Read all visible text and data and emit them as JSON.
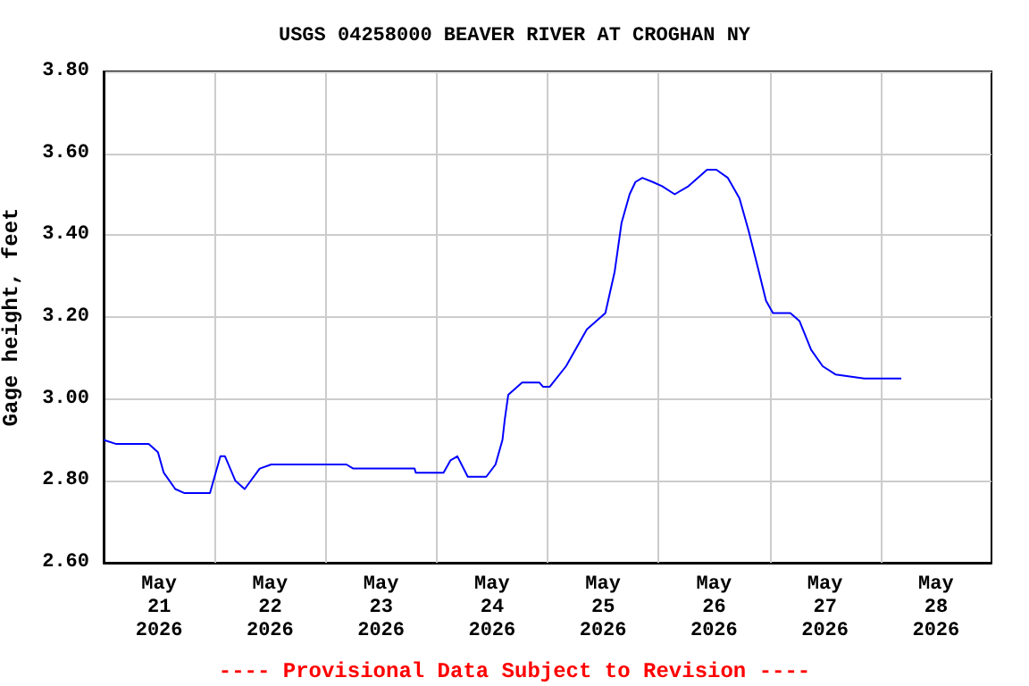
{
  "chart_data": {
    "type": "line",
    "title": "USGS 04258000 BEAVER RIVER AT CROGHAN NY",
    "ylabel": "Gage height, feet",
    "annotations": [
      "---- Provisional Data Subject to Revision ----"
    ],
    "x": [
      "2026-05-21T00:00",
      "2026-05-21T02:45",
      "2026-05-21T09:45",
      "2026-05-21T11:45",
      "2026-05-21T13:00",
      "2026-05-21T15:30",
      "2026-05-21T17:30",
      "2026-05-21T23:00",
      "2026-05-22T01:15",
      "2026-05-22T02:15",
      "2026-05-22T04:30",
      "2026-05-22T06:30",
      "2026-05-22T09:45",
      "2026-05-22T12:15",
      "2026-05-23T04:30",
      "2026-05-23T06:00",
      "2026-05-23T19:15",
      "2026-05-23T19:30",
      "2026-05-24T01:30",
      "2026-05-24T03:00",
      "2026-05-24T04:30",
      "2026-05-24T06:45",
      "2026-05-24T10:45",
      "2026-05-24T12:45",
      "2026-05-24T14:15",
      "2026-05-24T14:45",
      "2026-05-24T15:30",
      "2026-05-24T18:30",
      "2026-05-24T22:15",
      "2026-05-24T23:00",
      "2026-05-25T00:30",
      "2026-05-25T04:00",
      "2026-05-25T08:30",
      "2026-05-25T12:30",
      "2026-05-25T14:30",
      "2026-05-25T16:00",
      "2026-05-25T17:45",
      "2026-05-25T19:00",
      "2026-05-25T20:30",
      "2026-05-25T22:45",
      "2026-05-26T00:45",
      "2026-05-26T03:30",
      "2026-05-26T06:30",
      "2026-05-26T10:30",
      "2026-05-26T12:30",
      "2026-05-26T15:00",
      "2026-05-26T17:30",
      "2026-05-26T19:30",
      "2026-05-26T21:30",
      "2026-05-26T23:15",
      "2026-05-27T00:45",
      "2026-05-27T04:30",
      "2026-05-27T06:30",
      "2026-05-27T09:00",
      "2026-05-27T11:30",
      "2026-05-27T14:15",
      "2026-05-27T20:30",
      "2026-05-28T04:30"
    ],
    "series": [
      {
        "color": "#0000ff",
        "values": [
          2.9,
          2.89,
          2.89,
          2.87,
          2.82,
          2.78,
          2.77,
          2.77,
          2.86,
          2.86,
          2.8,
          2.78,
          2.83,
          2.84,
          2.84,
          2.83,
          2.83,
          2.82,
          2.82,
          2.85,
          2.86,
          2.81,
          2.81,
          2.84,
          2.9,
          2.95,
          3.01,
          3.04,
          3.04,
          3.03,
          3.03,
          3.08,
          3.17,
          3.21,
          3.31,
          3.43,
          3.5,
          3.53,
          3.54,
          3.53,
          3.52,
          3.5,
          3.52,
          3.56,
          3.56,
          3.54,
          3.49,
          3.41,
          3.32,
          3.24,
          3.21,
          3.21,
          3.19,
          3.12,
          3.08,
          3.06,
          3.05,
          3.05
        ]
      }
    ],
    "xlim": [
      "2026-05-21T00:00",
      "2026-05-29T00:00"
    ],
    "xticks": [
      {
        "value": "2026-05-21T12:00",
        "label": "May\n21\n2026"
      },
      {
        "value": "2026-05-22T00:00",
        "label": null
      },
      {
        "value": "2026-05-22T12:00",
        "label": "May\n22\n2026"
      },
      {
        "value": "2026-05-23T00:00",
        "label": null
      },
      {
        "value": "2026-05-23T12:00",
        "label": "May\n23\n2026"
      },
      {
        "value": "2026-05-24T00:00",
        "label": null
      },
      {
        "value": "2026-05-24T12:00",
        "label": "May\n24\n2026"
      },
      {
        "value": "2026-05-25T00:00",
        "label": null
      },
      {
        "value": "2026-05-25T12:00",
        "label": "May\n25\n2026"
      },
      {
        "value": "2026-05-26T00:00",
        "label": null
      },
      {
        "value": "2026-05-26T12:00",
        "label": "May\n26\n2026"
      },
      {
        "value": "2026-05-27T00:00",
        "label": null
      },
      {
        "value": "2026-05-27T12:00",
        "label": "May\n27\n2026"
      },
      {
        "value": "2026-05-28T00:00",
        "label": null
      },
      {
        "value": "2026-05-28T12:00",
        "label": "May\n28\n2026"
      }
    ],
    "ylim": [
      2.6,
      3.8
    ],
    "yticks": [
      {
        "value": 2.6,
        "label": "2.60"
      },
      {
        "value": 2.8,
        "label": "2.80"
      },
      {
        "value": 3.0,
        "label": "3.00"
      },
      {
        "value": 3.2,
        "label": "3.20"
      },
      {
        "value": 3.4,
        "label": "3.40"
      },
      {
        "value": 3.6,
        "label": "3.60"
      },
      {
        "value": 3.8,
        "label": "3.80"
      }
    ],
    "grid": true,
    "marker": "none",
    "line_style": "solid"
  }
}
